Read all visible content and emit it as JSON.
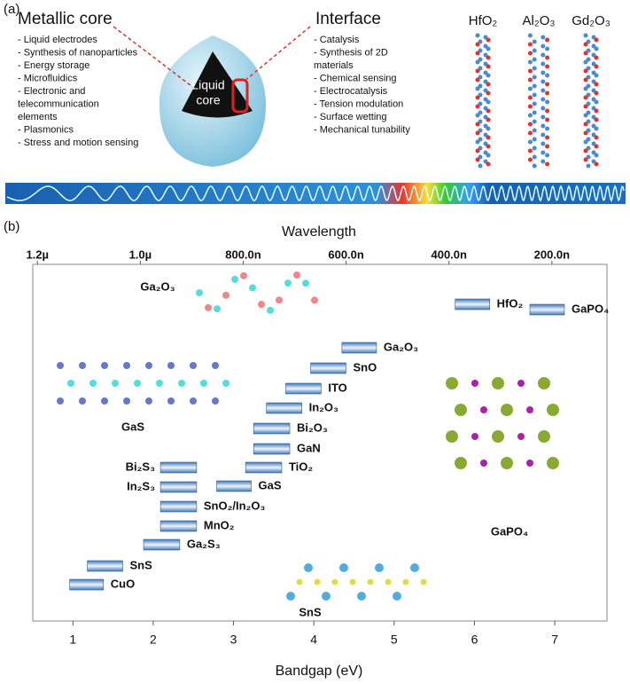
{
  "panel_a": {
    "label": "(a)",
    "metallic_core": {
      "title": "Metallic core",
      "items": [
        "- Liquid electrodes",
        "- Synthesis of nanoparticles",
        "- Energy storage",
        "- Microfluidics",
        "- Electronic and",
        "  telecommunication",
        "  elements",
        "- Plasmonics",
        "- Stress and motion sensing"
      ]
    },
    "core_label": [
      "Liquid",
      "core"
    ],
    "interface": {
      "title": "Interface",
      "items": [
        "- Catalysis",
        "- Synthesis of 2D",
        "  materials",
        "- Chemical sensing",
        "- Electrocatalysis",
        "- Tension modulation",
        "- Surface wetting",
        "- Mechanical tunability"
      ]
    },
    "oxides": [
      "HfO₂",
      "Al₂O₃",
      "Gd₂O₃"
    ]
  },
  "chart_data": {
    "type": "range_bar",
    "panel_label": "(b)",
    "x_label": "Bandgap (eV)",
    "x2_label": "Wavelength",
    "xlim": [
      0.5,
      7.65
    ],
    "xticks": [
      1,
      2,
      3,
      4,
      5,
      6,
      7
    ],
    "x2lim": [
      1209,
      93
    ],
    "x2ticks": [
      {
        "value": 1200,
        "label": "1.2µ"
      },
      {
        "value": 1000,
        "label": "1.0µ"
      },
      {
        "value": 800,
        "label": "800.0n"
      },
      {
        "value": 600,
        "label": "600.0n"
      },
      {
        "value": 400,
        "label": "400.0n"
      },
      {
        "value": 200,
        "label": "200.0n"
      }
    ],
    "categories": [
      "GaPO₄",
      "HfO₂",
      "Ga₂O₃",
      "SnO",
      "ITO",
      "In₂O₃",
      "Bi₂O₃",
      "GaN",
      "TiO₂",
      "GaS",
      "Bi₂S₃",
      "In₂S₃",
      "SnO₂/In₂O₃",
      "MnO₂",
      "Ga₂S₃",
      "SnS",
      "CuO"
    ],
    "starts": [
      6.69,
      5.76,
      4.35,
      3.96,
      3.65,
      3.41,
      3.25,
      3.25,
      3.15,
      2.79,
      2.09,
      2.09,
      2.09,
      2.09,
      1.88,
      1.18,
      0.96
    ],
    "ends": [
      7.12,
      6.19,
      4.78,
      4.4,
      4.09,
      3.85,
      3.7,
      3.7,
      3.6,
      3.22,
      2.54,
      2.54,
      2.54,
      2.54,
      2.33,
      1.62,
      1.38
    ],
    "annotations": [
      "Ga₂O₃",
      "GaS",
      "SnS",
      "GaPO₄"
    ]
  }
}
